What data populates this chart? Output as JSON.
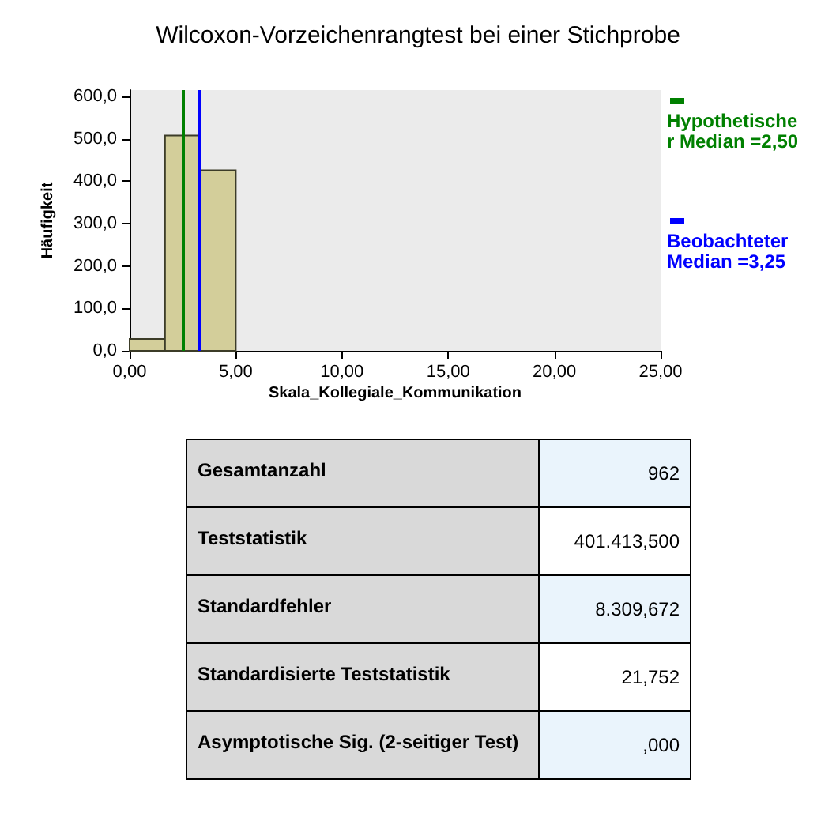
{
  "chart_data": {
    "type": "histogram",
    "title": "Wilcoxon-Vorzeichenrangtest bei einer Stichprobe",
    "xlabel": "Skala_Kollegiale_Kommunikation",
    "ylabel": "Häufigkeit",
    "bins": [
      0,
      1.667,
      3.333,
      5
    ],
    "values": [
      28,
      508,
      426
    ],
    "color": "#d3ce9a",
    "xlim": [
      0,
      25
    ],
    "xticks": [
      {
        "value": 0,
        "label": "0,00"
      },
      {
        "value": 5,
        "label": "5,00"
      },
      {
        "value": 10,
        "label": "10,00"
      },
      {
        "value": 15,
        "label": "15,00"
      },
      {
        "value": 20,
        "label": "20,00"
      },
      {
        "value": 25,
        "label": "25,00"
      }
    ],
    "ylim": [
      0,
      615
    ],
    "yticks": [
      {
        "value": 0,
        "label": "0,0"
      },
      {
        "value": 100,
        "label": "100,0"
      },
      {
        "value": 200,
        "label": "200,0"
      },
      {
        "value": 300,
        "label": "300,0"
      },
      {
        "value": 400,
        "label": "400,0"
      },
      {
        "value": 500,
        "label": "500,0"
      },
      {
        "value": 600,
        "label": "600,0"
      }
    ],
    "grid": false,
    "ref_lines": [
      {
        "axis": "x",
        "value": 2.5,
        "label": "Hypothetischer Median =2,50",
        "color": "#008000"
      },
      {
        "axis": "x",
        "value": 3.25,
        "label": "Beobachteter Median =3,25",
        "color": "#0000ff"
      }
    ],
    "annotations": [
      "Gesamtanzahl",
      "962",
      "Teststatistik",
      "401.413,500",
      "Standardfehler",
      "8.309,672",
      "Standardisierte Teststatistik",
      "21,752",
      "Asymptotische Sig. (2-seitiger Test)",
      ",000"
    ]
  }
}
